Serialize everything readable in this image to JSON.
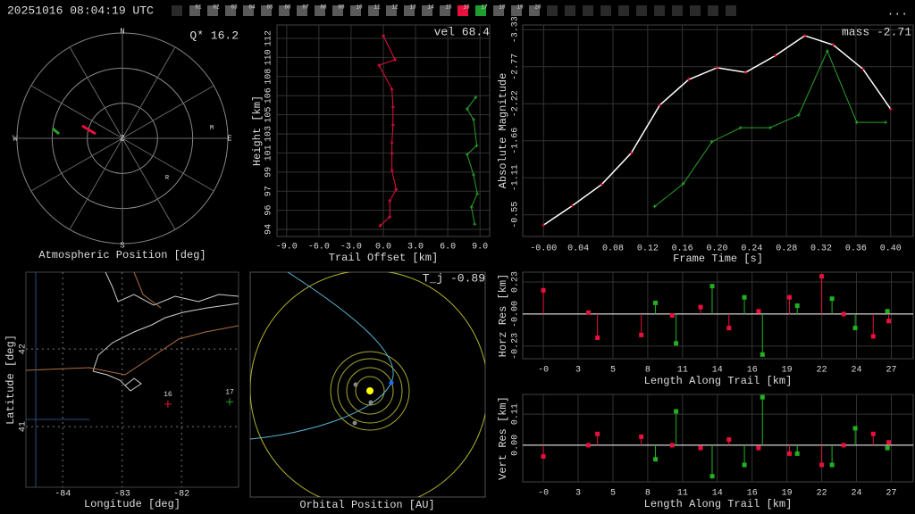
{
  "header": {
    "timestamp": "20251016 08:04:19 UTC",
    "tabs": [
      "01",
      "02",
      "03",
      "04",
      "05",
      "06",
      "07",
      "08",
      "09",
      "10",
      "11",
      "12",
      "13",
      "14",
      "15",
      "16",
      "17",
      "18",
      "19",
      "20"
    ],
    "tab_colors": [
      "#5a5a5a",
      "#5a5a5a",
      "#5a5a5a",
      "#5a5a5a",
      "#5a5a5a",
      "#5a5a5a",
      "#5a5a5a",
      "#5a5a5a",
      "#5a5a5a",
      "#5a5a5a",
      "#5a5a5a",
      "#5a5a5a",
      "#5a5a5a",
      "#5a5a5a",
      "#5a5a5a",
      "#e8103c",
      "#1e9e2e",
      "#5a5a5a",
      "#5a5a5a",
      "#5a5a5a"
    ],
    "menu": "..."
  },
  "chart_data": [
    {
      "type": "polar",
      "title": "Atmospheric Position [deg]",
      "annotation": "Q* 16.2",
      "compass": [
        "N",
        "E",
        "S",
        "W"
      ],
      "center_label": "Z",
      "point_labels": [
        "M",
        "R"
      ]
    },
    {
      "type": "line",
      "annotation": "vel 68.4",
      "xlabel": "Trail Offset [km]",
      "ylabel": "Height [km]",
      "xlim": [
        -9.9,
        9.9
      ],
      "ylim": [
        93.13,
        113.06
      ],
      "xticks": [
        {
          "value": -9,
          "label": "-9.0"
        },
        {
          "value": -6,
          "label": "-6.0"
        },
        {
          "value": -3,
          "label": "-3.0"
        },
        {
          "value": 0,
          "label": "0.0"
        },
        {
          "value": 3,
          "label": "3.0"
        },
        {
          "value": 6,
          "label": "6.0"
        },
        {
          "value": 9,
          "label": "9.0"
        }
      ],
      "yticks": [
        {
          "value": 93.8,
          "label": "94"
        },
        {
          "value": 95.6,
          "label": "96"
        },
        {
          "value": 97.4,
          "label": "97"
        },
        {
          "value": 99.2,
          "label": "99"
        },
        {
          "value": 101.0,
          "label": "101"
        },
        {
          "value": 102.8,
          "label": "103"
        },
        {
          "value": 104.6,
          "label": "105"
        },
        {
          "value": 106.4,
          "label": "106"
        },
        {
          "value": 108.2,
          "label": "108"
        },
        {
          "value": 110.0,
          "label": "110"
        },
        {
          "value": 111.8,
          "label": "112"
        }
      ],
      "grid": true,
      "marker": "plus",
      "series": [
        {
          "color": "#e8103c",
          "x": [
            0,
            1.1,
            -0.4,
            0.8,
            0.9,
            0.9,
            0.8,
            0.8,
            0.8,
            1.2,
            0.6,
            0.6,
            -0.3
          ],
          "values": [
            112.05,
            109.78,
            109.27,
            107.0,
            105.32,
            103.64,
            101.96,
            100.95,
            99.35,
            97.58,
            96.49,
            94.98,
            94.14
          ]
        },
        {
          "color": "#2aa02a",
          "x": [
            8.6,
            7.8,
            8.4,
            8.7,
            7.8,
            8.4,
            8.75,
            8.2,
            8.5
          ],
          "values": [
            106.25,
            105.15,
            104.14,
            101.7,
            100.86,
            98.93,
            97.16,
            95.9,
            94.3
          ]
        }
      ]
    },
    {
      "type": "line",
      "annotation": "mass -2.71",
      "xlabel": "Frame Time [s]",
      "ylabel": "Absolute Magnitude",
      "xlim": [
        -0.024,
        0.426
      ],
      "ylim": [
        -0.23,
        -3.4
      ],
      "xticks": [
        {
          "value": 0,
          "label": "-0.00"
        },
        0.04,
        0.08,
        0.12,
        0.16,
        {
          "value": 0.2,
          "label": "0.20"
        },
        0.24,
        0.28,
        0.32,
        0.36,
        {
          "value": 0.4,
          "label": "0.40"
        }
      ],
      "yticks": [
        {
          "value": -3.33,
          "label": "-3.33"
        },
        {
          "value": -2.774,
          "label": "-2.77"
        },
        {
          "value": -2.22,
          "label": "-2.22"
        },
        {
          "value": -1.664,
          "label": "-1.66"
        },
        {
          "value": -1.11,
          "label": "-1.11"
        },
        {
          "value": -0.554,
          "label": "-0.55"
        }
      ],
      "grid": true,
      "marker": "plus",
      "series": [
        {
          "color": "#e8103c",
          "line_color": "#ffffff",
          "x": [
            0,
            0.033,
            0.067,
            0.101,
            0.134,
            0.167,
            0.2,
            0.233,
            0.267,
            0.301,
            0.334,
            0.368,
            0.4
          ],
          "values": [
            -0.4,
            -0.69,
            -1.01,
            -1.48,
            -2.2,
            -2.58,
            -2.76,
            -2.69,
            -2.94,
            -3.24,
            -3.1,
            -2.74,
            -2.14
          ]
        },
        {
          "color": "#2aa02a",
          "x": [
            0.128,
            0.161,
            0.194,
            0.227,
            0.261,
            0.294,
            0.327,
            0.361,
            0.394
          ],
          "values": [
            -0.68,
            -1.02,
            -1.65,
            -1.86,
            -1.86,
            -2.05,
            -3.01,
            -1.94,
            -1.94
          ]
        }
      ]
    },
    {
      "type": "scatter",
      "xlabel": "Longitude [deg]",
      "ylabel": "Latitude [deg]",
      "xlim": [
        -84.62,
        -81.04
      ],
      "ylim": [
        40.22,
        42.99
      ],
      "xticks": [
        -84,
        -83,
        -82
      ],
      "yticks": [
        41,
        42
      ],
      "grid": true,
      "grid_style": "dotted",
      "marker": "plus",
      "series": [
        {
          "label": "16",
          "color": "#e8103c",
          "x": [
            -82.23
          ],
          "values": [
            41.29
          ]
        },
        {
          "label": "17",
          "color": "#2aa02a",
          "x": [
            -81.19
          ],
          "values": [
            41.32
          ]
        }
      ]
    },
    {
      "type": "orbit",
      "title": "Orbital Position [AU]",
      "annotation": "T_j -0.89"
    },
    {
      "type": "stem",
      "xlabel": "Length Along Trail [km]",
      "ylabel": "Horz Res [km]",
      "xlim": [
        -1.6,
        28.7
      ],
      "ylim": [
        -0.32,
        0.3
      ],
      "xticks": [
        {
          "value": 0,
          "label": "-0"
        },
        {
          "value": 2.7,
          "label": "3"
        },
        {
          "value": 5.4,
          "label": "5"
        },
        {
          "value": 8.1,
          "label": "8"
        },
        {
          "value": 10.8,
          "label": "11"
        },
        {
          "value": 13.5,
          "label": "14"
        },
        {
          "value": 16.2,
          "label": "16"
        },
        {
          "value": 18.9,
          "label": "19"
        },
        {
          "value": 21.6,
          "label": "22"
        },
        {
          "value": 24.3,
          "label": "24"
        },
        {
          "value": 27,
          "label": "27"
        }
      ],
      "yticks": [
        0.23,
        {
          "value": 0,
          "label": "-0.00"
        },
        -0.23
      ],
      "grid": true,
      "zero_line": true,
      "marker": "square",
      "series": [
        {
          "color": "#e8103c",
          "x": [
            0,
            3.5,
            4.2,
            7.6,
            10,
            12.2,
            14.4,
            16.7,
            19.1,
            21.6,
            23.3,
            25.6,
            26.8
          ],
          "values": [
            0.17,
            0.01,
            -0.17,
            -0.15,
            -0.01,
            0.05,
            -0.1,
            0.02,
            0.12,
            0.27,
            0,
            -0.16,
            -0.05
          ]
        },
        {
          "color": "#22b022",
          "x": [
            8.7,
            10.3,
            13.1,
            15.6,
            17,
            19.7,
            22.4,
            24.2,
            26.7
          ],
          "values": [
            0.08,
            -0.21,
            0.2,
            0.12,
            -0.29,
            0.06,
            0.11,
            -0.1,
            0.02
          ]
        }
      ]
    },
    {
      "type": "stem",
      "xlabel": "Length Along Trail [km]",
      "ylabel": "Vert Res [km]",
      "xlim": [
        -1.6,
        28.7
      ],
      "ylim": [
        -0.13,
        0.18
      ],
      "xticks": [
        {
          "value": 0,
          "label": "-0"
        },
        {
          "value": 2.7,
          "label": "3"
        },
        {
          "value": 5.4,
          "label": "5"
        },
        {
          "value": 8.1,
          "label": "8"
        },
        {
          "value": 10.8,
          "label": "11"
        },
        {
          "value": 13.5,
          "label": "14"
        },
        {
          "value": 16.2,
          "label": "16"
        },
        {
          "value": 18.9,
          "label": "19"
        },
        {
          "value": 21.6,
          "label": "22"
        },
        {
          "value": 24.3,
          "label": "24"
        },
        {
          "value": 27,
          "label": "27"
        }
      ],
      "yticks": [
        0.11,
        {
          "value": 0,
          "label": "0.00"
        }
      ],
      "grid": true,
      "zero_line": true,
      "marker": "square",
      "series": [
        {
          "color": "#e8103c",
          "x": [
            0,
            3.5,
            4.2,
            7.6,
            10,
            12.2,
            14.4,
            16.7,
            19.1,
            21.6,
            23.3,
            25.6,
            26.8
          ],
          "values": [
            -0.04,
            0,
            0.04,
            0.03,
            0,
            -0.01,
            0.02,
            -0.01,
            -0.03,
            -0.07,
            0,
            0.04,
            0.01
          ]
        },
        {
          "color": "#22b022",
          "x": [
            8.7,
            10.3,
            13.1,
            15.6,
            17,
            19.7,
            22.4,
            24.2,
            26.7
          ],
          "values": [
            -0.05,
            0.12,
            -0.11,
            -0.07,
            0.17,
            -0.03,
            -0.07,
            0.06,
            -0.01
          ]
        }
      ]
    }
  ]
}
